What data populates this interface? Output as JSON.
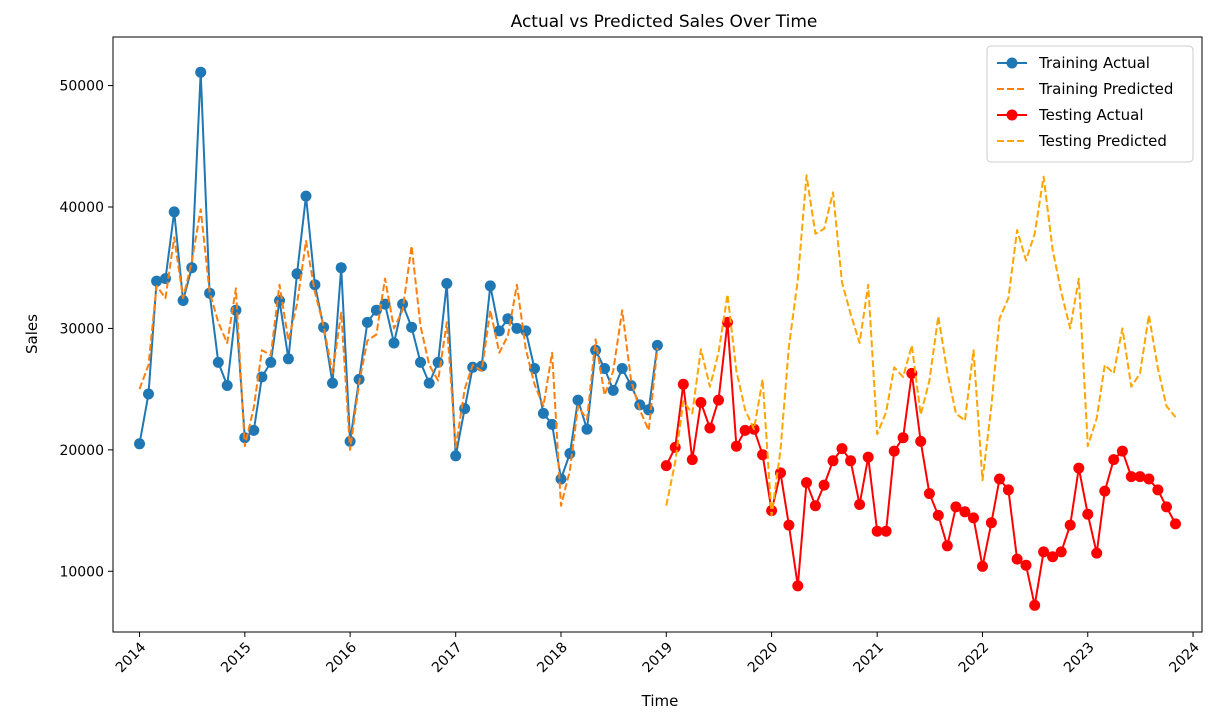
{
  "chart_data": {
    "type": "line",
    "title": "Actual vs Predicted Sales Over Time",
    "xlabel": "Time",
    "ylabel": "Sales",
    "xlim": [
      "2013-10-01",
      "2024-02-01"
    ],
    "ylim": [
      5000,
      54000
    ],
    "x_ticks": [
      "2014",
      "2015",
      "2016",
      "2017",
      "2018",
      "2019",
      "2020",
      "2021",
      "2022",
      "2023",
      "2024"
    ],
    "y_ticks": [
      10000,
      20000,
      30000,
      40000,
      50000
    ],
    "grid": false,
    "legend_position": "top-right",
    "series": [
      {
        "name": "Training Actual",
        "color": "#1f77b4",
        "style": "solid",
        "marker": "circle",
        "start": "2014-01",
        "values": [
          20500,
          24600,
          33900,
          34100,
          39600,
          32300,
          35000,
          51100,
          32900,
          27200,
          25300,
          31500,
          21000,
          21600,
          26000,
          27200,
          32300,
          27500,
          34500,
          40900,
          33600,
          30100,
          25500,
          35000,
          20700,
          25800,
          30500,
          31500,
          32000,
          28800,
          32000,
          30100,
          27200,
          25500,
          27200,
          33700,
          19500,
          23400,
          26800,
          26900,
          33500,
          29800,
          30800,
          30000,
          29800,
          26700,
          23000,
          22100,
          17600,
          19700,
          24100,
          21700,
          28200,
          26700,
          24900,
          26700,
          25300,
          23700,
          23300,
          28600
        ]
      },
      {
        "name": "Training Predicted",
        "color": "#ff7f0e",
        "style": "dashed",
        "marker": "none",
        "start": "2014-01",
        "values": [
          25000,
          27000,
          33500,
          32500,
          37500,
          32500,
          35500,
          39800,
          33000,
          30500,
          28800,
          33300,
          20300,
          23500,
          28200,
          27800,
          33600,
          29000,
          32000,
          37200,
          33000,
          30200,
          26300,
          31300,
          20000,
          25500,
          29000,
          29500,
          34100,
          30000,
          31500,
          36800,
          30200,
          27000,
          25700,
          30500,
          20200,
          25000,
          27000,
          26500,
          31500,
          28000,
          29400,
          33600,
          28300,
          25400,
          23600,
          28000,
          15400,
          18300,
          23600,
          22500,
          29100,
          24500,
          26500,
          31500,
          25700,
          23300,
          21600,
          28400
        ]
      },
      {
        "name": "Testing Actual",
        "color": "#ff0000",
        "style": "solid",
        "marker": "circle",
        "start": "2019-01",
        "values": [
          18700,
          20200,
          25400,
          19200,
          23900,
          21800,
          24100,
          30500,
          20300,
          21600,
          21700,
          19600,
          15000,
          18100,
          13800,
          8800,
          17300,
          15400,
          17100,
          19100,
          20100,
          19100,
          15500,
          19400,
          13300,
          13300,
          19900,
          21000,
          26300,
          20700,
          16400,
          14600,
          12100,
          15300,
          14900,
          14400,
          10400,
          14000,
          17600,
          16700,
          11000,
          10500,
          7200,
          11600,
          11200,
          11600,
          13800,
          18500,
          14700,
          11500,
          16600,
          19200,
          19900,
          17800,
          17800,
          17600,
          16700,
          15300,
          13900
        ]
      },
      {
        "name": "Testing Predicted",
        "color": "#ffa500",
        "style": "dashed",
        "marker": "none",
        "start": "2019-01",
        "values": [
          15400,
          19000,
          24000,
          23000,
          28300,
          25200,
          28000,
          32800,
          26500,
          23300,
          21700,
          25800,
          14600,
          20000,
          28500,
          34000,
          42600,
          37800,
          38200,
          41200,
          33800,
          31200,
          28800,
          33600,
          21300,
          23100,
          26800,
          26000,
          28600,
          22900,
          25700,
          31000,
          26400,
          23000,
          22400,
          28200,
          17500,
          23600,
          30800,
          32500,
          38100,
          35600,
          37800,
          42500,
          36500,
          33000,
          30000,
          34100,
          20300,
          22600,
          27000,
          26300,
          30000,
          25200,
          26300,
          31100,
          26700,
          23600,
          22700
        ]
      }
    ]
  }
}
